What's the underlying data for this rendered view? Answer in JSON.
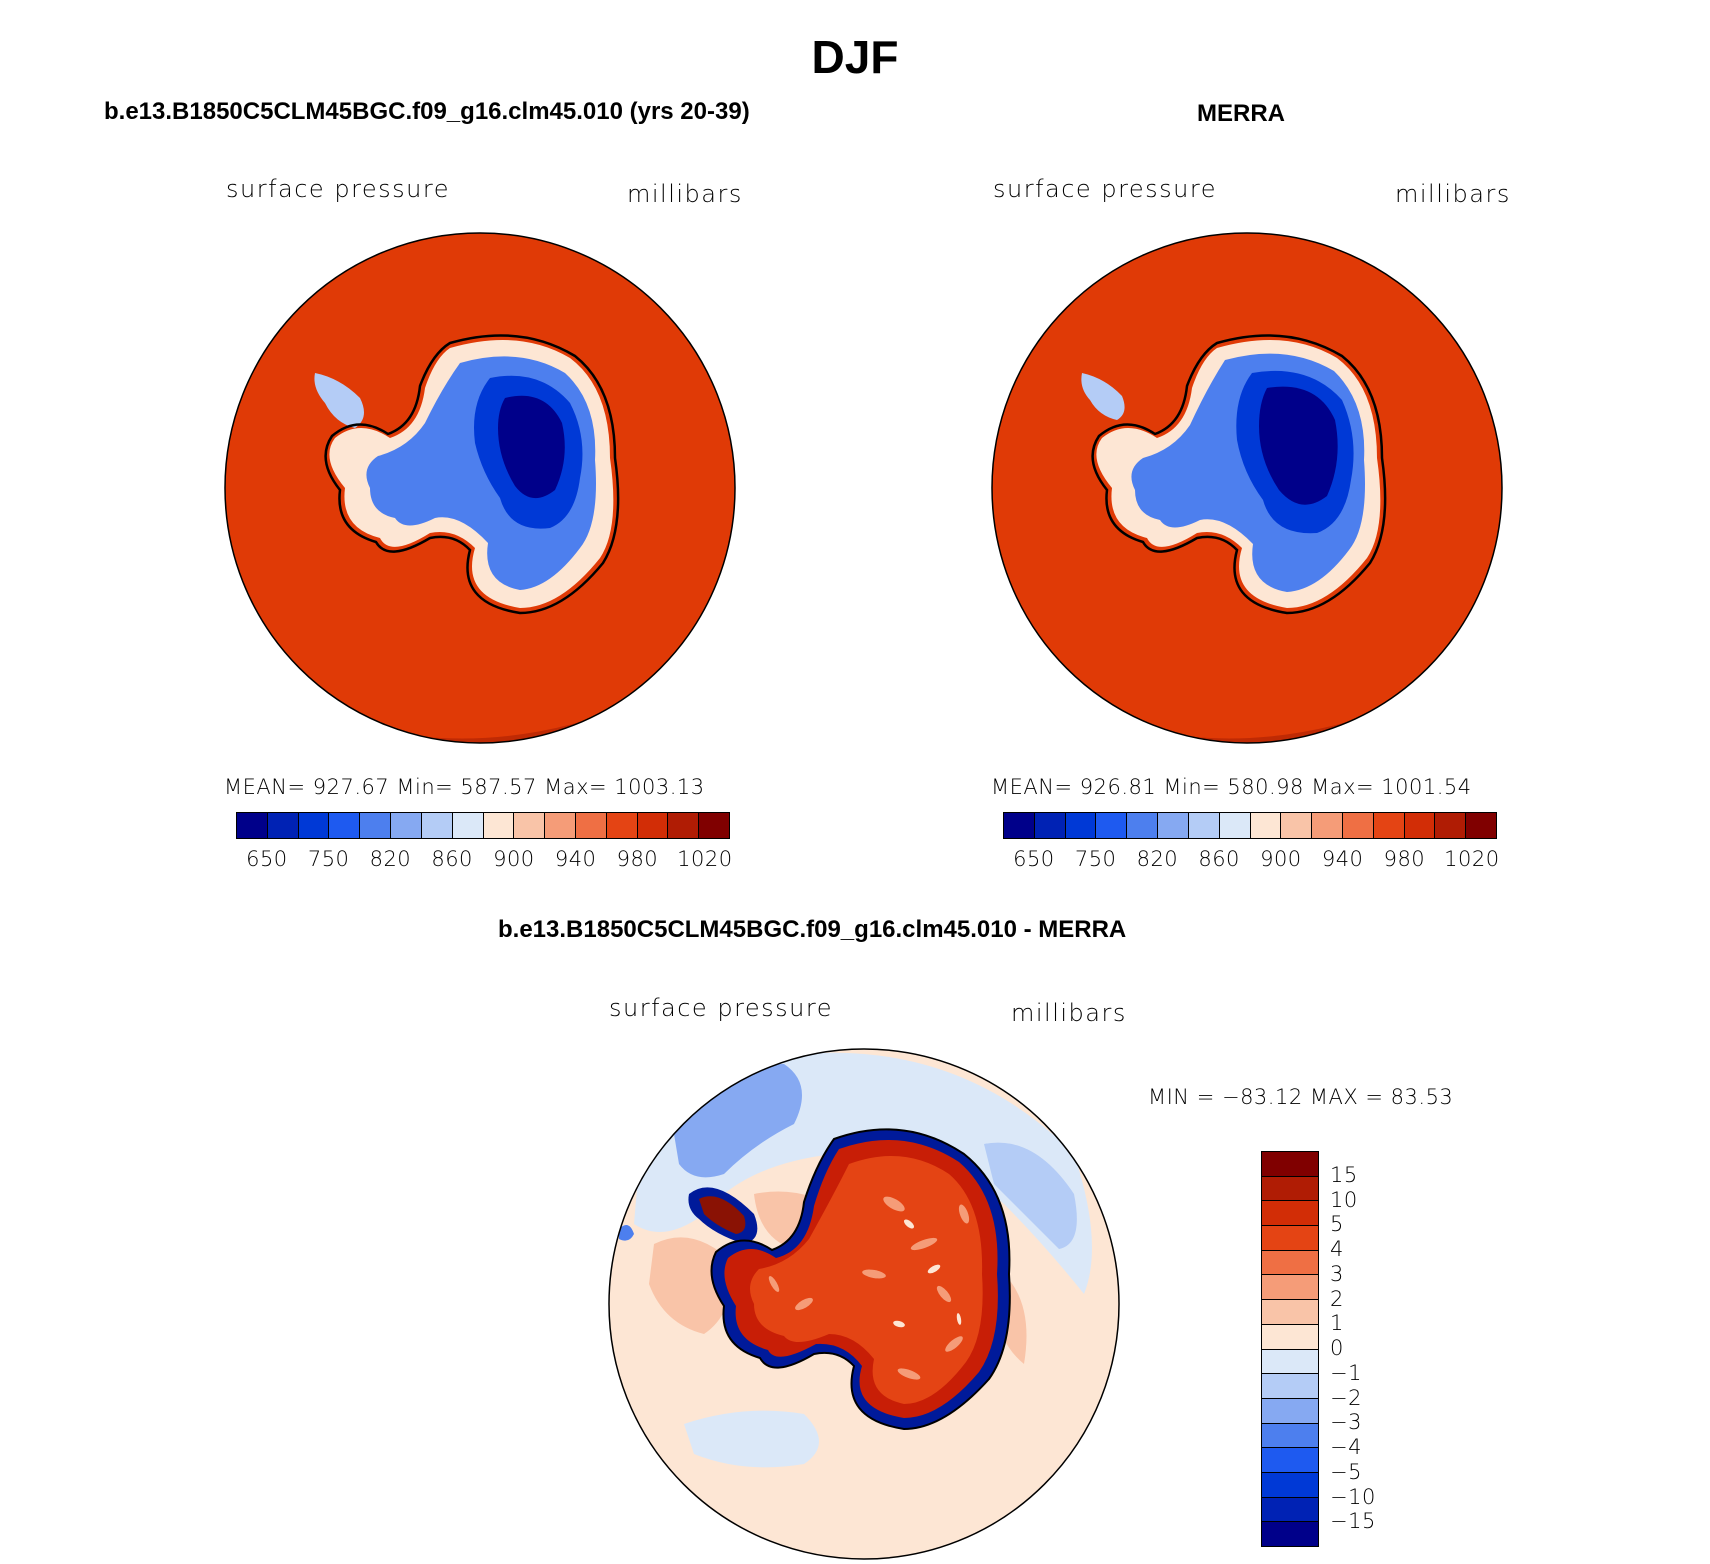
{
  "figure_title": "DJF",
  "panels": [
    {
      "title": "b.e13.B1850C5CLM45BGC.f09_g16.clm45.010 (yrs 20-39)",
      "variable": "surface pressure",
      "units": "millibars",
      "stats": "MEAN= 927.67   Min= 587.57   Max= 1003.13"
    },
    {
      "title": "MERRA",
      "variable": "surface pressure",
      "units": "millibars",
      "stats": "MEAN= 926.81   Min= 580.98   Max= 1001.54"
    }
  ],
  "diff_panel": {
    "title": "b.e13.B1850C5CLM45BGC.f09_g16.clm45.010 - MERRA",
    "variable": "surface pressure",
    "units": "millibars",
    "stats": "MIN = −83.12 MAX =  83.53"
  },
  "colorbar": {
    "tick_labels": [
      "650",
      "750",
      "820",
      "860",
      "900",
      "940",
      "980",
      "1020"
    ],
    "colors": [
      "#00008a",
      "#0022b4",
      "#0039d6",
      "#1e5af0",
      "#4d7fee",
      "#86a9f2",
      "#b4ccf6",
      "#dbe8f8",
      "#fde6d4",
      "#f9c4a8",
      "#f59c78",
      "#ef6f44",
      "#e44414",
      "#d22d06",
      "#b01c04",
      "#800000"
    ]
  },
  "diff_colorbar": {
    "tick_labels": [
      "15",
      "10",
      "5",
      "4",
      "3",
      "2",
      "1",
      "0",
      "−1",
      "−2",
      "−3",
      "−4",
      "−5",
      "−10",
      "−15"
    ],
    "colors": [
      "#800000",
      "#b01c04",
      "#d22d06",
      "#e44414",
      "#ef6f44",
      "#f59c78",
      "#f9c4a8",
      "#fde6d4",
      "#dbe8f8",
      "#b4ccf6",
      "#86a9f2",
      "#4d7fee",
      "#1e5af0",
      "#0039d6",
      "#0022b4",
      "#00008a"
    ]
  },
  "map_colors": {
    "ocean_high": "#e03a06",
    "rim_shade": "#bf2a04",
    "coast": "#000000"
  }
}
